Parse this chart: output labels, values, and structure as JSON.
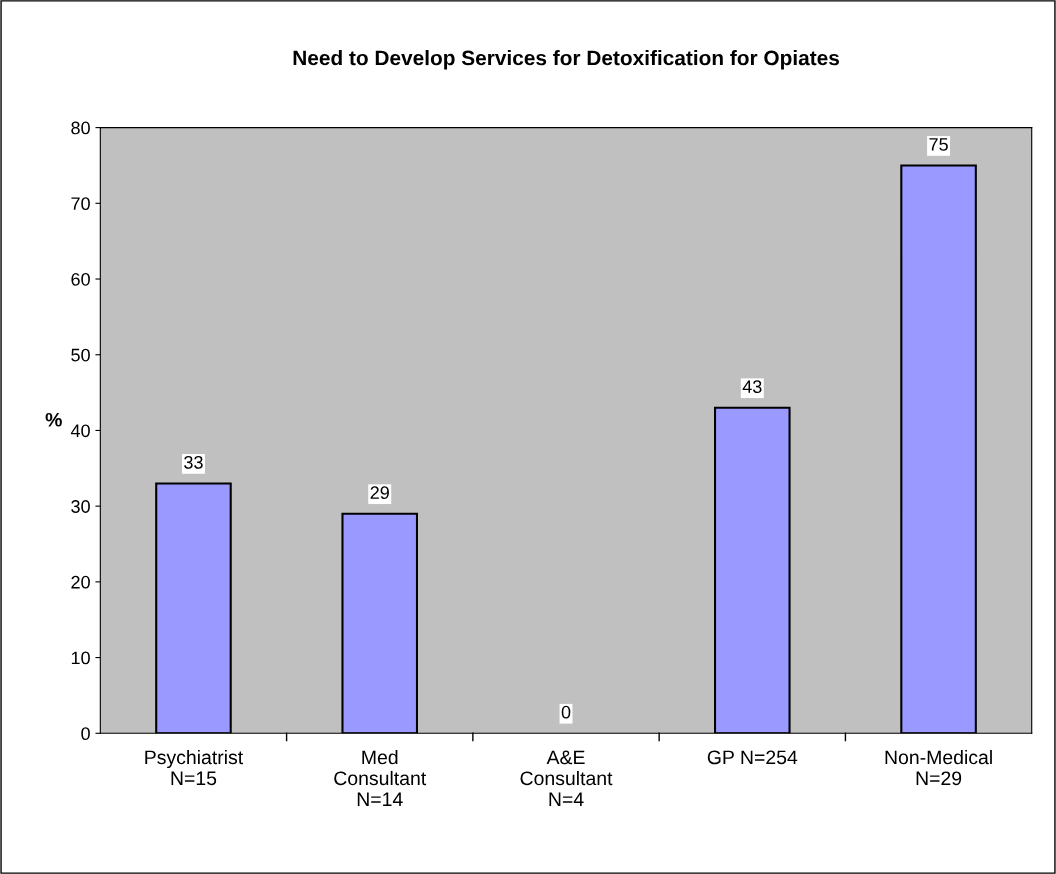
{
  "chart_data": {
    "type": "bar",
    "title": "Need to Develop Services for Detoxification for Opiates",
    "ylabel": "%",
    "categories": [
      "Psychiatrist\nN=15",
      "Med\nConsultant\nN=14",
      "A&E\nConsultant\nN=4",
      "GP N=254",
      "Non-Medical\nN=29"
    ],
    "values": [
      33,
      29,
      0,
      43,
      75
    ],
    "color": "#9999ff",
    "ylim": [
      0,
      80
    ],
    "yticks": [
      0,
      10,
      20,
      30,
      40,
      50,
      60,
      70,
      80
    ],
    "grid": false,
    "data_labels": true
  }
}
